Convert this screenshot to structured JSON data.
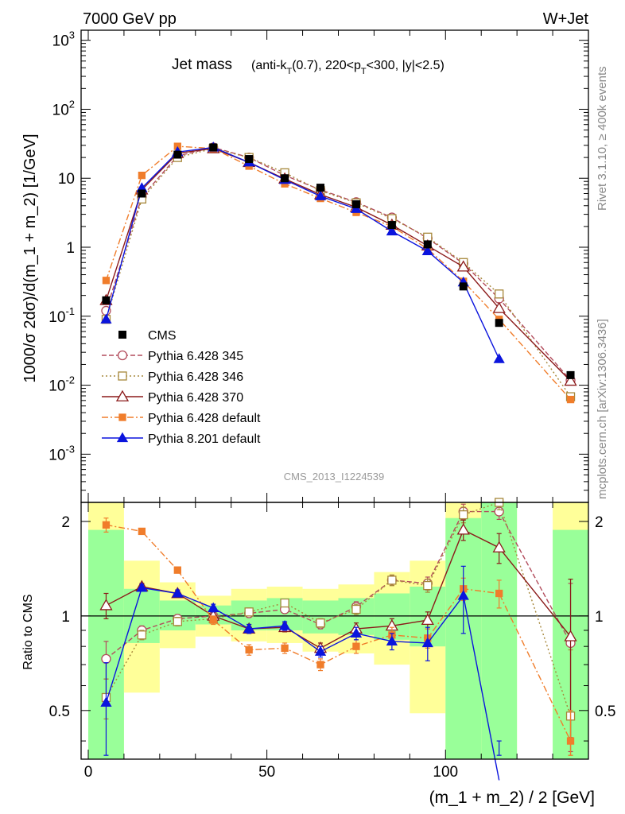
{
  "header": {
    "left": "7000 GeV pp",
    "right": "W+Jet"
  },
  "title": {
    "main": "Jet mass",
    "detail": "(anti-k_T(0.7), 220<p_T<300, |y|<2.5)"
  },
  "side": {
    "rivet": "Rivet 3.1.10, ≥ 400k events",
    "mcplots": "mcplots.cern.ch [arXiv:1306.3436]"
  },
  "analysis_id": "CMS_2013_I1224539",
  "colors": {
    "cms": "#000000",
    "p345": "#b24c5c",
    "p346": "#a6873a",
    "p370": "#8b1a1a",
    "pdef": "#f07d2b",
    "p8": "#0b14dd",
    "band_green": "#99ff99",
    "band_yellow": "#ffff99"
  },
  "chart_data": {
    "type": "line",
    "xlabel": "(m_1 + m_2) / 2 [GeV]",
    "ylabel_main": "1000/σ 2dσ)/d(m_1 + m_2) [1/GeV]",
    "ylabel_ratio": "Ratio to CMS",
    "xlim": [
      -2,
      140
    ],
    "ylim_main": [
      0.0002,
      1400
    ],
    "y_scale_main": "log",
    "ylim_ratio": [
      0.35,
      2.3
    ],
    "y_scale_ratio": "log",
    "x_ticks": [
      "0",
      "50",
      "100"
    ],
    "y_ticks_main": [
      "10^-3",
      "10^-2",
      "10^-1",
      "1",
      "10",
      "10^2",
      "10^3"
    ],
    "y_ticks_ratio": [
      "0.5",
      "1",
      "2"
    ],
    "legend_position": "middle-left",
    "x": [
      5,
      15,
      25,
      35,
      45,
      55,
      65,
      75,
      85,
      95,
      105,
      115,
      135
    ],
    "bins": [
      [
        0,
        10
      ],
      [
        10,
        20
      ],
      [
        20,
        30
      ],
      [
        30,
        40
      ],
      [
        40,
        50
      ],
      [
        50,
        60
      ],
      [
        60,
        70
      ],
      [
        70,
        80
      ],
      [
        80,
        90
      ],
      [
        90,
        100
      ],
      [
        100,
        110
      ],
      [
        110,
        120
      ],
      [
        130,
        140
      ]
    ],
    "band_green_ratio": [
      [
        0.35,
        1.88
      ],
      [
        0.82,
        1.22
      ],
      [
        0.9,
        1.12
      ],
      [
        0.94,
        1.08
      ],
      [
        0.9,
        1.12
      ],
      [
        0.9,
        1.14
      ],
      [
        0.88,
        1.12
      ],
      [
        0.87,
        1.14
      ],
      [
        0.84,
        1.18
      ],
      [
        0.8,
        1.24
      ],
      [
        0.35,
        2.05
      ],
      [
        0.35,
        2.3
      ],
      [
        0.35,
        1.88
      ]
    ],
    "band_yellow_ratio": [
      [
        0.35,
        2.3
      ],
      [
        0.57,
        1.5
      ],
      [
        0.79,
        1.28
      ],
      [
        0.86,
        1.16
      ],
      [
        0.83,
        1.22
      ],
      [
        0.82,
        1.24
      ],
      [
        0.77,
        1.22
      ],
      [
        0.76,
        1.26
      ],
      [
        0.7,
        1.38
      ],
      [
        0.49,
        1.5
      ],
      [
        0.35,
        2.3
      ],
      [
        0.35,
        2.3
      ],
      [
        0.35,
        2.3
      ]
    ],
    "cms": {
      "name": "CMS",
      "values": [
        0.17,
        6.0,
        22,
        28,
        19,
        10,
        7.3,
        4.2,
        2.1,
        1.1,
        0.27,
        0.08,
        0.014
      ]
    },
    "series": [
      {
        "name": "Pythia 6.428 345",
        "key": "p345",
        "marker": "open-circle",
        "dash": "6,3",
        "values": [
          0.12,
          5.4,
          21,
          28,
          20,
          11,
          6.8,
          4.5,
          2.7,
          1.35,
          0.58,
          0.18,
          0.0118
        ],
        "ratio": [
          0.73,
          0.9,
          0.98,
          1.0,
          1.02,
          1.05,
          0.94,
          1.07,
          1.3,
          1.27,
          2.15,
          2.15,
          0.82
        ],
        "ratio_err": [
          0.1,
          0.03,
          0.03,
          0.03,
          0.03,
          0.03,
          0.03,
          0.04,
          0.05,
          0.06,
          0.12,
          0.12,
          0.45
        ]
      },
      {
        "name": "Pythia 6.428 346",
        "key": "p346",
        "marker": "open-square",
        "dash": "2,3",
        "values": [
          0.09,
          5.0,
          20,
          27,
          20,
          12,
          6.6,
          4.4,
          2.6,
          1.4,
          0.6,
          0.21,
          0.0068
        ],
        "ratio": [
          0.55,
          0.87,
          0.96,
          0.98,
          1.03,
          1.1,
          0.95,
          1.05,
          1.3,
          1.25,
          2.1,
          2.3,
          0.48
        ],
        "ratio_err": [
          0.08,
          0.03,
          0.03,
          0.03,
          0.03,
          0.03,
          0.03,
          0.04,
          0.05,
          0.06,
          0.12,
          0.12,
          0.3
        ]
      },
      {
        "name": "Pythia 6.428 370",
        "key": "p370",
        "marker": "open-triangle",
        "dash": "",
        "values": [
          0.17,
          6.8,
          23,
          27,
          17,
          9.8,
          5.8,
          3.8,
          2.1,
          1.05,
          0.52,
          0.13,
          0.0115
        ],
        "ratio": [
          1.08,
          1.24,
          1.18,
          1.0,
          0.91,
          0.92,
          0.79,
          0.91,
          0.93,
          0.97,
          1.88,
          1.65,
          0.86
        ],
        "ratio_err": [
          0.1,
          0.03,
          0.03,
          0.03,
          0.03,
          0.03,
          0.03,
          0.04,
          0.05,
          0.06,
          0.14,
          0.18,
          0.45
        ]
      },
      {
        "name": "Pythia 6.428 default",
        "key": "pdef",
        "marker": "filled-square",
        "dash": "8,3,2,3",
        "values": [
          0.33,
          11,
          29,
          27,
          15,
          8.3,
          5.1,
          3.2,
          2.0,
          0.95,
          0.32,
          0.09,
          0.0062
        ],
        "ratio": [
          1.95,
          1.86,
          1.4,
          0.97,
          0.78,
          0.79,
          0.7,
          0.8,
          0.87,
          0.85,
          1.22,
          1.18,
          0.4
        ],
        "ratio_err": [
          0.1,
          0.03,
          0.03,
          0.03,
          0.03,
          0.03,
          0.03,
          0.04,
          0.05,
          0.06,
          0.1,
          0.12,
          0.1
        ]
      },
      {
        "name": "Pythia 8.201 default",
        "key": "p8",
        "marker": "filled-triangle",
        "dash": "",
        "values": [
          0.09,
          7.2,
          24,
          28,
          17,
          9.5,
          5.5,
          3.6,
          1.7,
          0.88,
          0.31,
          0.024,
          null
        ],
        "ratio": [
          0.53,
          1.23,
          1.18,
          1.06,
          0.91,
          0.93,
          0.77,
          0.88,
          0.83,
          0.82,
          1.16,
          0.3,
          null
        ],
        "ratio_err": [
          0.18,
          0.03,
          0.03,
          0.03,
          0.03,
          0.03,
          0.03,
          0.04,
          0.05,
          0.1,
          0.28,
          0.1,
          null
        ]
      }
    ]
  }
}
